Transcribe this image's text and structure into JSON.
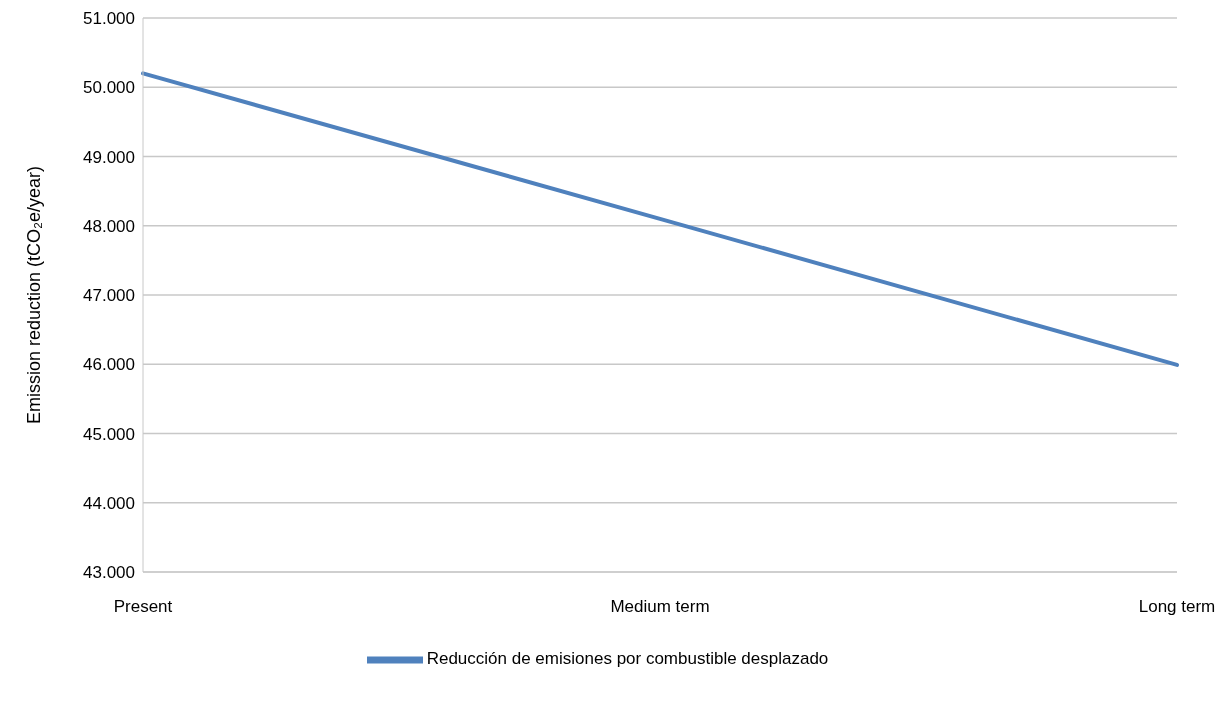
{
  "chart_data": {
    "type": "line",
    "ylabel": "Emission reduction (tCO₂e/year)",
    "categories": [
      "Present",
      "Medium term",
      "Long term"
    ],
    "series": [
      {
        "name": "Reducción de emisiones por combustible desplazado",
        "color": "#4f81bd",
        "values": [
          50200,
          48100,
          45990
        ]
      }
    ],
    "ylim": [
      43000,
      51000
    ],
    "yticks": [
      {
        "value": 43000,
        "label": "43.000"
      },
      {
        "value": 44000,
        "label": "44.000"
      },
      {
        "value": 45000,
        "label": "45.000"
      },
      {
        "value": 46000,
        "label": "46.000"
      },
      {
        "value": 47000,
        "label": "47.000"
      },
      {
        "value": 48000,
        "label": "48.000"
      },
      {
        "value": 49000,
        "label": "49.000"
      },
      {
        "value": 50000,
        "label": "50.000"
      },
      {
        "value": 51000,
        "label": "51.000"
      }
    ],
    "grid": "y",
    "legend": "bottom",
    "marker": "none",
    "line_style": "solid"
  }
}
